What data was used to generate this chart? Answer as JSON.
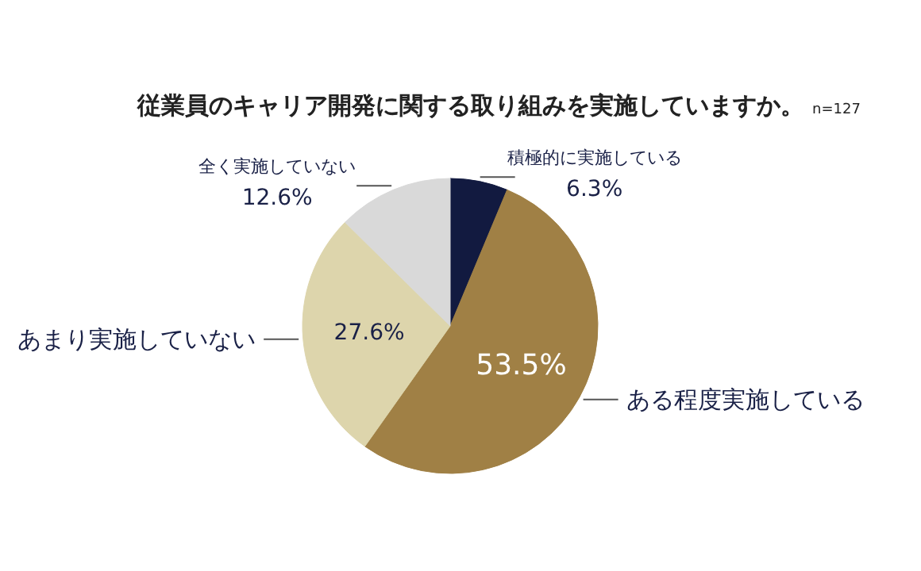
{
  "chart_data": {
    "type": "pie",
    "title": "従業員のキャリア開発に関する取り組みを実施していますか。",
    "subtitle": "n=127",
    "categories": [
      "積極的に実施している",
      "ある程度実施している",
      "あまり実施していない",
      "全く実施していない"
    ],
    "values": [
      6.3,
      53.5,
      27.6,
      12.6
    ],
    "colors": [
      "#121a40",
      "#a08045",
      "#ddd5ac",
      "#d9d9d9"
    ],
    "value_labels": [
      "6.3%",
      "53.5%",
      "27.6%",
      "12.6%"
    ]
  }
}
